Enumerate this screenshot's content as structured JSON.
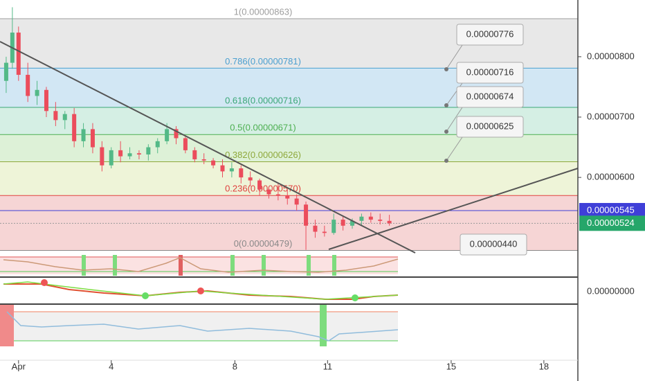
{
  "chart_data": {
    "type": "candlestick",
    "x": [
      0.6,
      0.8,
      1.0,
      1.3,
      1.6,
      1.9,
      2.2,
      2.5,
      2.8,
      3.1,
      3.4,
      3.7,
      4.0,
      4.3,
      4.6,
      4.9,
      5.2,
      5.5,
      5.8,
      6.1,
      6.4,
      6.7,
      7.0,
      7.3,
      7.6,
      7.9,
      8.2,
      8.5,
      8.8,
      9.1,
      9.4,
      9.7,
      10.0,
      10.3,
      10.6,
      10.9,
      11.2,
      11.5,
      11.8,
      12.1,
      12.4,
      12.7,
      13.0
    ],
    "open": [
      7.6e-06,
      7.9e-06,
      8.4e-06,
      7.7e-06,
      7.35e-06,
      7.45e-06,
      7.1e-06,
      6.95e-06,
      7.05e-06,
      6.6e-06,
      6.8e-06,
      6.5e-06,
      6.2e-06,
      6.45e-06,
      6.35e-06,
      6.4e-06,
      6.38e-06,
      6.5e-06,
      6.6e-06,
      6.8e-06,
      6.65e-06,
      6.45e-06,
      6.3e-06,
      6.28e-06,
      6.2e-06,
      6.1e-06,
      6.15e-06,
      6e-06,
      5.95e-06,
      5.8e-06,
      5.72e-06,
      5.7e-06,
      5.65e-06,
      5.55e-06,
      5.2e-06,
      5.1e-06,
      5.08e-06,
      5.3e-06,
      5.2e-06,
      5.28e-06,
      5.35e-06,
      5.3e-06,
      5.28e-06
    ],
    "high": [
      8e-06,
      8.82e-06,
      8.5e-06,
      7.9e-06,
      7.6e-06,
      7.5e-06,
      7.25e-06,
      7.1e-06,
      7.15e-06,
      6.9e-06,
      6.9e-06,
      6.6e-06,
      6.5e-06,
      6.6e-06,
      6.5e-06,
      6.45e-06,
      6.55e-06,
      6.65e-06,
      6.9e-06,
      6.85e-06,
      6.7e-06,
      6.5e-06,
      6.4e-06,
      6.32e-06,
      6.3e-06,
      6.25e-06,
      6.2e-06,
      6.1e-06,
      5.98e-06,
      5.85e-06,
      5.9e-06,
      5.8e-06,
      5.72e-06,
      5.6e-06,
      5.3e-06,
      5.2e-06,
      5.4e-06,
      5.35e-06,
      5.32e-06,
      5.4e-06,
      5.42e-06,
      5.4e-06,
      5.38e-06
    ],
    "low": [
      7.4e-06,
      7.8e-06,
      7.6e-06,
      7.25e-06,
      7.2e-06,
      7e-06,
      6.85e-06,
      6.8e-06,
      6.5e-06,
      6.5e-06,
      6.4e-06,
      6.1e-06,
      6.15e-06,
      6.25e-06,
      6.3e-06,
      6.3e-06,
      6.28e-06,
      6.4e-06,
      6.55e-06,
      6.55e-06,
      6.4e-06,
      6.25e-06,
      6.22e-06,
      6.15e-06,
      6e-06,
      6e-06,
      5.9e-06,
      5.85e-06,
      5.7e-06,
      5.65e-06,
      5.62e-06,
      5.55e-06,
      5.45e-06,
      4.8e-06,
      5e-06,
      5.02e-06,
      5.05e-06,
      5.12e-06,
      5.15e-06,
      5.2e-06,
      5.25e-06,
      5.22e-06,
      5.2e-06
    ],
    "close": [
      7.9e-06,
      8.4e-06,
      7.7e-06,
      7.35e-06,
      7.45e-06,
      7.1e-06,
      6.95e-06,
      7.05e-06,
      6.6e-06,
      6.8e-06,
      6.5e-06,
      6.2e-06,
      6.45e-06,
      6.35e-06,
      6.4e-06,
      6.38e-06,
      6.5e-06,
      6.6e-06,
      6.8e-06,
      6.65e-06,
      6.45e-06,
      6.3e-06,
      6.28e-06,
      6.2e-06,
      6.1e-06,
      6.15e-06,
      6e-06,
      5.95e-06,
      5.8e-06,
      5.72e-06,
      5.7e-06,
      5.65e-06,
      5.55e-06,
      5.2e-06,
      5.1e-06,
      5.08e-06,
      5.3e-06,
      5.2e-06,
      5.28e-06,
      5.35e-06,
      5.3e-06,
      5.28e-06,
      5.24e-06
    ],
    "up_color": "#53b987",
    "down_color": "#eb4d5c",
    "ylim": [
      4.75e-06,
      8.94e-06
    ],
    "yticks": [
      {
        "value": 8e-06,
        "label": "0.00000800"
      },
      {
        "value": 7e-06,
        "label": "0.00000700"
      },
      {
        "value": 6e-06,
        "label": "0.00000600"
      }
    ],
    "xlim": [
      0.4,
      19.1
    ],
    "xticks": [
      {
        "value": 1,
        "label": "Apr"
      },
      4,
      8,
      11,
      15,
      18
    ],
    "fib_levels": [
      {
        "label": "1(0.00000863)",
        "value": 8.63e-06,
        "color": "#9e9e9e",
        "fill": "#e8e8e8"
      },
      {
        "label": "0.786(0.00000781)",
        "value": 7.81e-06,
        "color": "#4a9fd0",
        "fill": "#d2e7f4"
      },
      {
        "label": "0.618(0.00000716)",
        "value": 7.16e-06,
        "color": "#3aa776",
        "fill": "#d5efe4"
      },
      {
        "label": "0.5(0.00000671)",
        "value": 6.71e-06,
        "color": "#4caf50",
        "fill": "#ddf1d7"
      },
      {
        "label": "0.382(0.00000626)",
        "value": 6.26e-06,
        "color": "#8ea83a",
        "fill": "#eef4d8"
      },
      {
        "label": "0.236(0.00000570)",
        "value": 5.7e-06,
        "color": "#e0403e",
        "fill": "#f6d5d5"
      },
      {
        "label": "0(0.00000479)",
        "value": 4.79e-06,
        "color": "#888888",
        "fill": "#f6d5d5"
      }
    ],
    "price_lines": [
      {
        "value": 5.45e-06,
        "label": "0.00000545",
        "color": "#3f3fd8"
      },
      {
        "value": 5.24e-06,
        "label": "0.00000524",
        "color": "#26a66a"
      }
    ],
    "callouts": [
      "0.00000776",
      "0.00000716",
      "0.00000674",
      "0.00000625",
      "0.00000440"
    ],
    "indicator_axis_label": "0.00000000"
  }
}
